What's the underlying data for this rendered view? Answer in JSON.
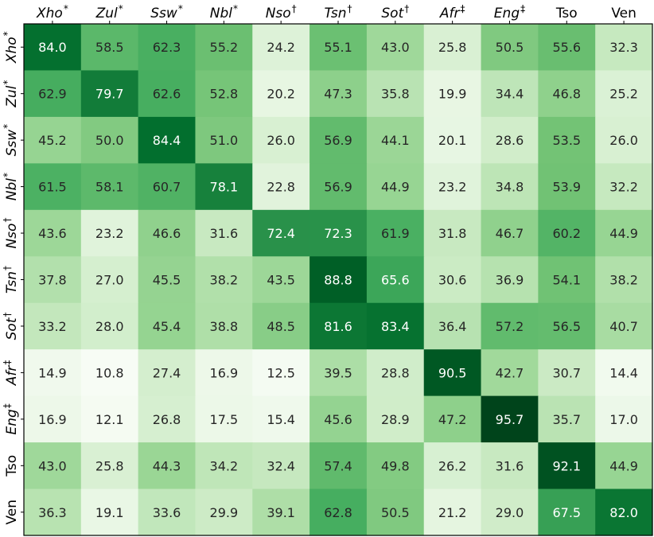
{
  "chart_data": {
    "type": "heatmap",
    "columns": [
      {
        "base": "Xho",
        "mark": "*",
        "italic": true
      },
      {
        "base": "Zul",
        "mark": "*",
        "italic": true
      },
      {
        "base": "Ssw",
        "mark": "*",
        "italic": true
      },
      {
        "base": "Nbl",
        "mark": "*",
        "italic": true
      },
      {
        "base": "Nso",
        "mark": "†",
        "italic": true
      },
      {
        "base": "Tsn",
        "mark": "†",
        "italic": true
      },
      {
        "base": "Sot",
        "mark": "†",
        "italic": true
      },
      {
        "base": "Afr",
        "mark": "‡",
        "italic": true
      },
      {
        "base": "Eng",
        "mark": "‡",
        "italic": true
      },
      {
        "base": "Tso",
        "mark": "",
        "italic": false
      },
      {
        "base": "Ven",
        "mark": "",
        "italic": false
      }
    ],
    "rows": [
      {
        "base": "Xho",
        "mark": "*",
        "italic": true
      },
      {
        "base": "Zul",
        "mark": "*",
        "italic": true
      },
      {
        "base": "Ssw",
        "mark": "*",
        "italic": true
      },
      {
        "base": "Nbl",
        "mark": "*",
        "italic": true
      },
      {
        "base": "Nso",
        "mark": "†",
        "italic": true
      },
      {
        "base": "Tsn",
        "mark": "†",
        "italic": true
      },
      {
        "base": "Sot",
        "mark": "†",
        "italic": true
      },
      {
        "base": "Afr",
        "mark": "‡",
        "italic": true
      },
      {
        "base": "Eng",
        "mark": "‡",
        "italic": true
      },
      {
        "base": "Tso",
        "mark": "",
        "italic": false
      },
      {
        "base": "Ven",
        "mark": "",
        "italic": false
      }
    ],
    "values": [
      [
        84.0,
        58.5,
        62.3,
        55.2,
        24.2,
        55.1,
        43.0,
        25.8,
        50.5,
        55.6,
        32.3
      ],
      [
        62.9,
        79.7,
        62.6,
        52.8,
        20.2,
        47.3,
        35.8,
        19.9,
        34.4,
        46.8,
        25.2
      ],
      [
        45.2,
        50.0,
        84.4,
        51.0,
        26.0,
        56.9,
        44.1,
        20.1,
        28.6,
        53.5,
        26.0
      ],
      [
        61.5,
        58.1,
        60.7,
        78.1,
        22.8,
        56.9,
        44.9,
        23.2,
        34.8,
        53.9,
        32.2
      ],
      [
        43.6,
        23.2,
        46.6,
        31.6,
        72.4,
        72.3,
        61.9,
        31.8,
        46.7,
        60.2,
        44.9
      ],
      [
        37.8,
        27.0,
        45.5,
        38.2,
        43.5,
        88.8,
        65.6,
        30.6,
        36.9,
        54.1,
        38.2
      ],
      [
        33.2,
        28.0,
        45.4,
        38.8,
        48.5,
        81.6,
        83.4,
        36.4,
        57.2,
        56.5,
        40.7
      ],
      [
        14.9,
        10.8,
        27.4,
        16.9,
        12.5,
        39.5,
        28.8,
        90.5,
        42.7,
        30.7,
        14.4
      ],
      [
        16.9,
        12.1,
        26.8,
        17.5,
        15.4,
        45.6,
        28.9,
        47.2,
        95.7,
        35.7,
        17.0
      ],
      [
        43.0,
        25.8,
        44.3,
        34.2,
        32.4,
        57.4,
        49.8,
        26.2,
        31.6,
        92.1,
        44.9
      ],
      [
        36.3,
        19.1,
        33.6,
        29.9,
        39.1,
        62.8,
        50.5,
        21.2,
        29.0,
        67.5,
        82.0
      ]
    ],
    "value_format": "one-decimal",
    "colormap": "Greens",
    "colormap_stops": [
      "#f7fcf5",
      "#e5f5e0",
      "#c7e9c0",
      "#a1d99b",
      "#74c476",
      "#41ab5d",
      "#238b45",
      "#006d2c",
      "#00441b"
    ],
    "text_colors": {
      "dark": "#262626",
      "light": "#ffffff"
    },
    "x_ticks_position": "top",
    "grid": false,
    "legend": "none"
  }
}
